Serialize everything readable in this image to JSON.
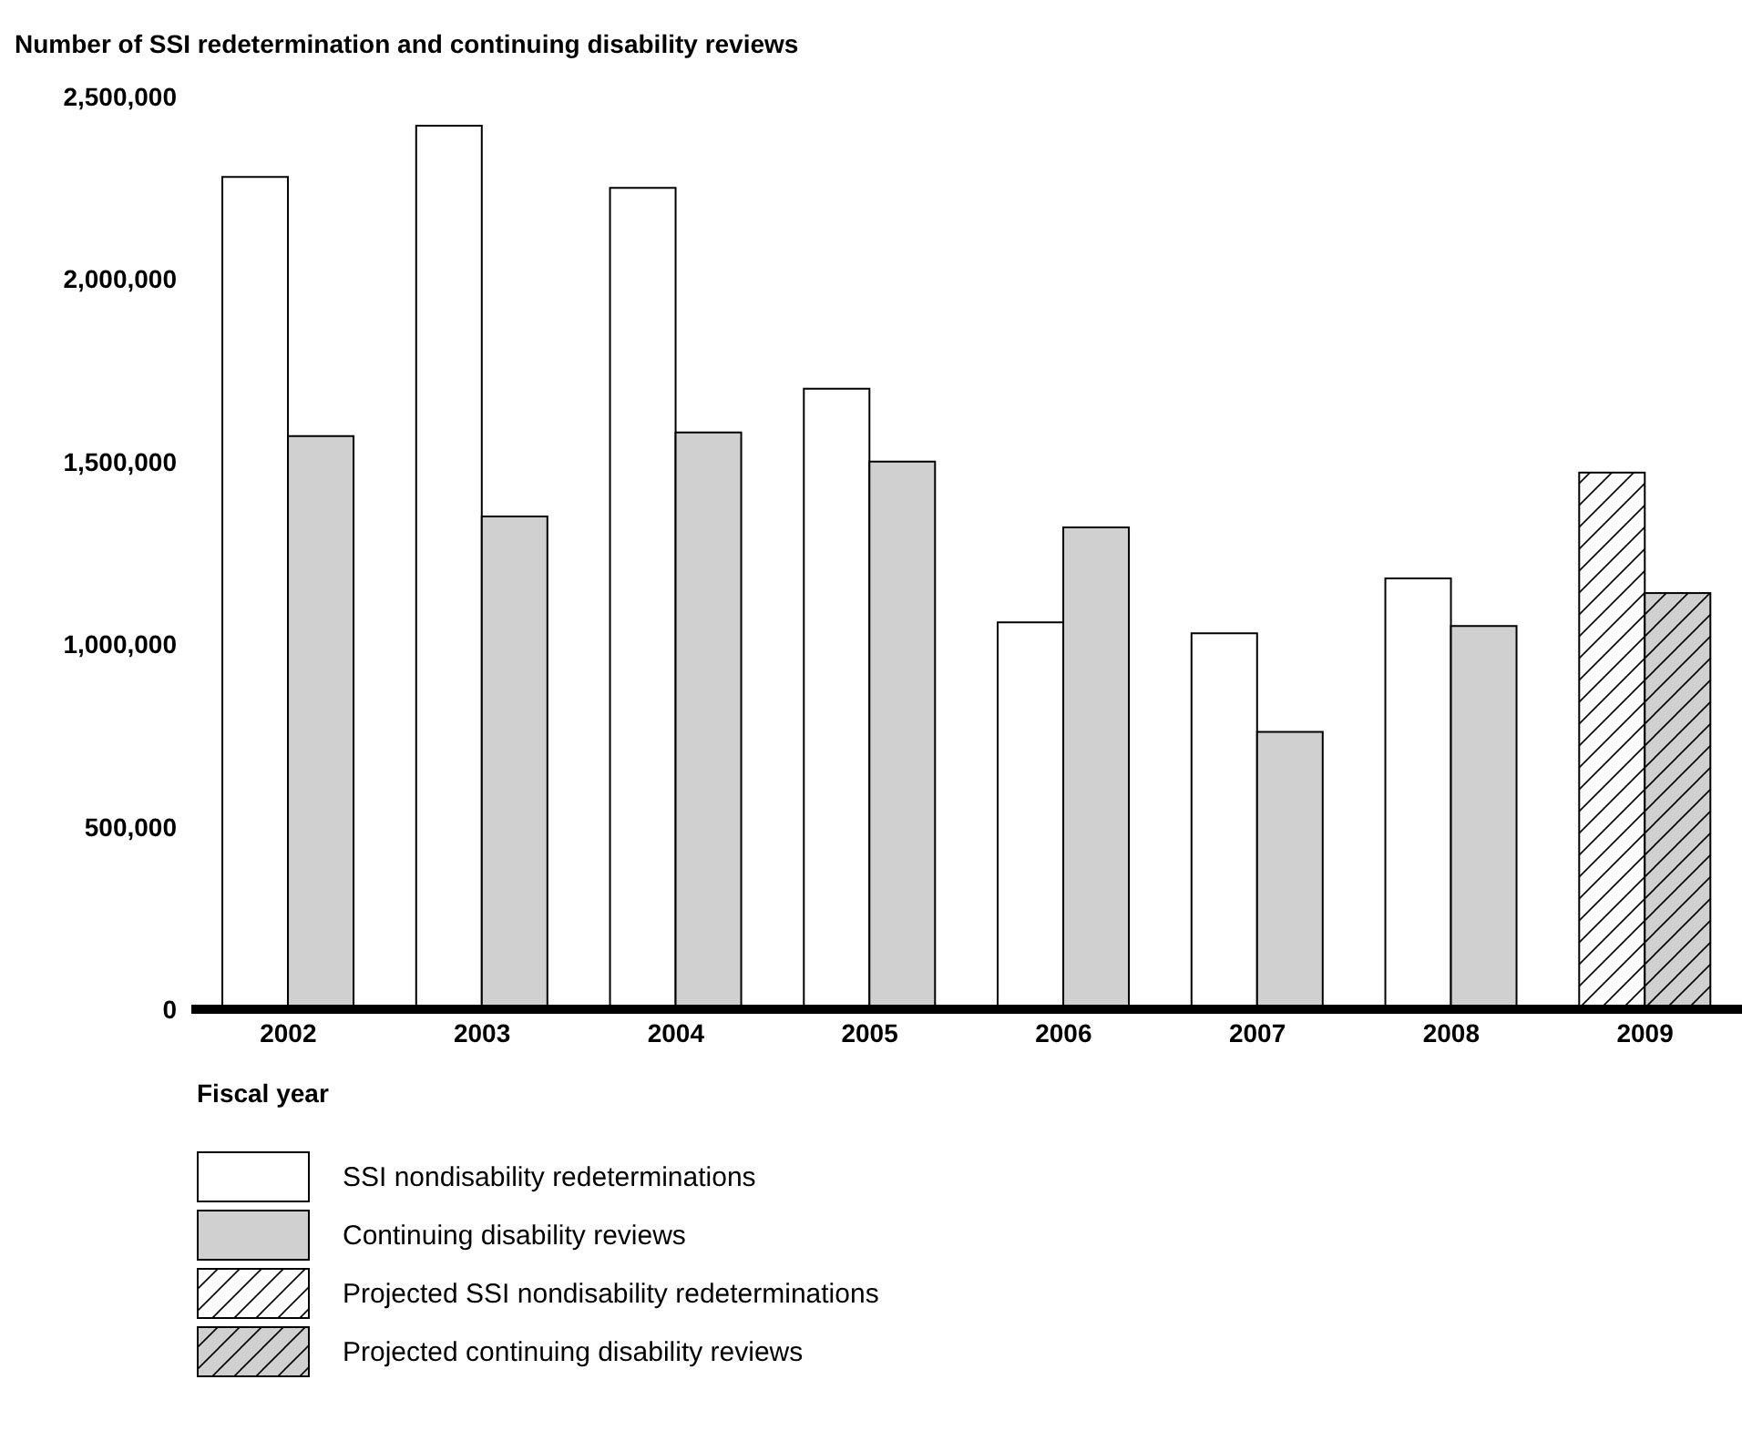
{
  "chart_data": {
    "type": "bar",
    "ylabel": "Number of SSI redetermination and continuing disability reviews",
    "xlabel": "Fiscal year",
    "categories": [
      "2002",
      "2003",
      "2004",
      "2005",
      "2006",
      "2007",
      "2008",
      "2009"
    ],
    "series": [
      {
        "name": "SSI nondisability redeterminations",
        "color": "#ffffff",
        "values": [
          2280000,
          2420000,
          2250000,
          1700000,
          1060000,
          1030000,
          1180000,
          null
        ]
      },
      {
        "name": "Continuing disability reviews",
        "color": "#d0d0d0",
        "values": [
          1570000,
          1350000,
          1580000,
          1500000,
          1320000,
          760000,
          1050000,
          null
        ]
      },
      {
        "name": "Projected SSI nondisability redeterminations",
        "color": "#ffffff",
        "values": [
          null,
          null,
          null,
          null,
          null,
          null,
          null,
          1470000
        ]
      },
      {
        "name": "Projected continuing disability reviews",
        "color": "#d0d0d0",
        "values": [
          null,
          null,
          null,
          null,
          null,
          null,
          null,
          1140000
        ]
      }
    ],
    "ylim": [
      0,
      2500000
    ],
    "yticks": [
      {
        "value": 0,
        "label": "0"
      },
      {
        "value": 500000,
        "label": "500,000"
      },
      {
        "value": 1000000,
        "label": "1,000,000"
      },
      {
        "value": 1500000,
        "label": "1,500,000"
      },
      {
        "value": 2000000,
        "label": "2,000,000"
      },
      {
        "value": 2500000,
        "label": "2,500,000"
      }
    ],
    "grid": false,
    "legend": "bottom left"
  }
}
